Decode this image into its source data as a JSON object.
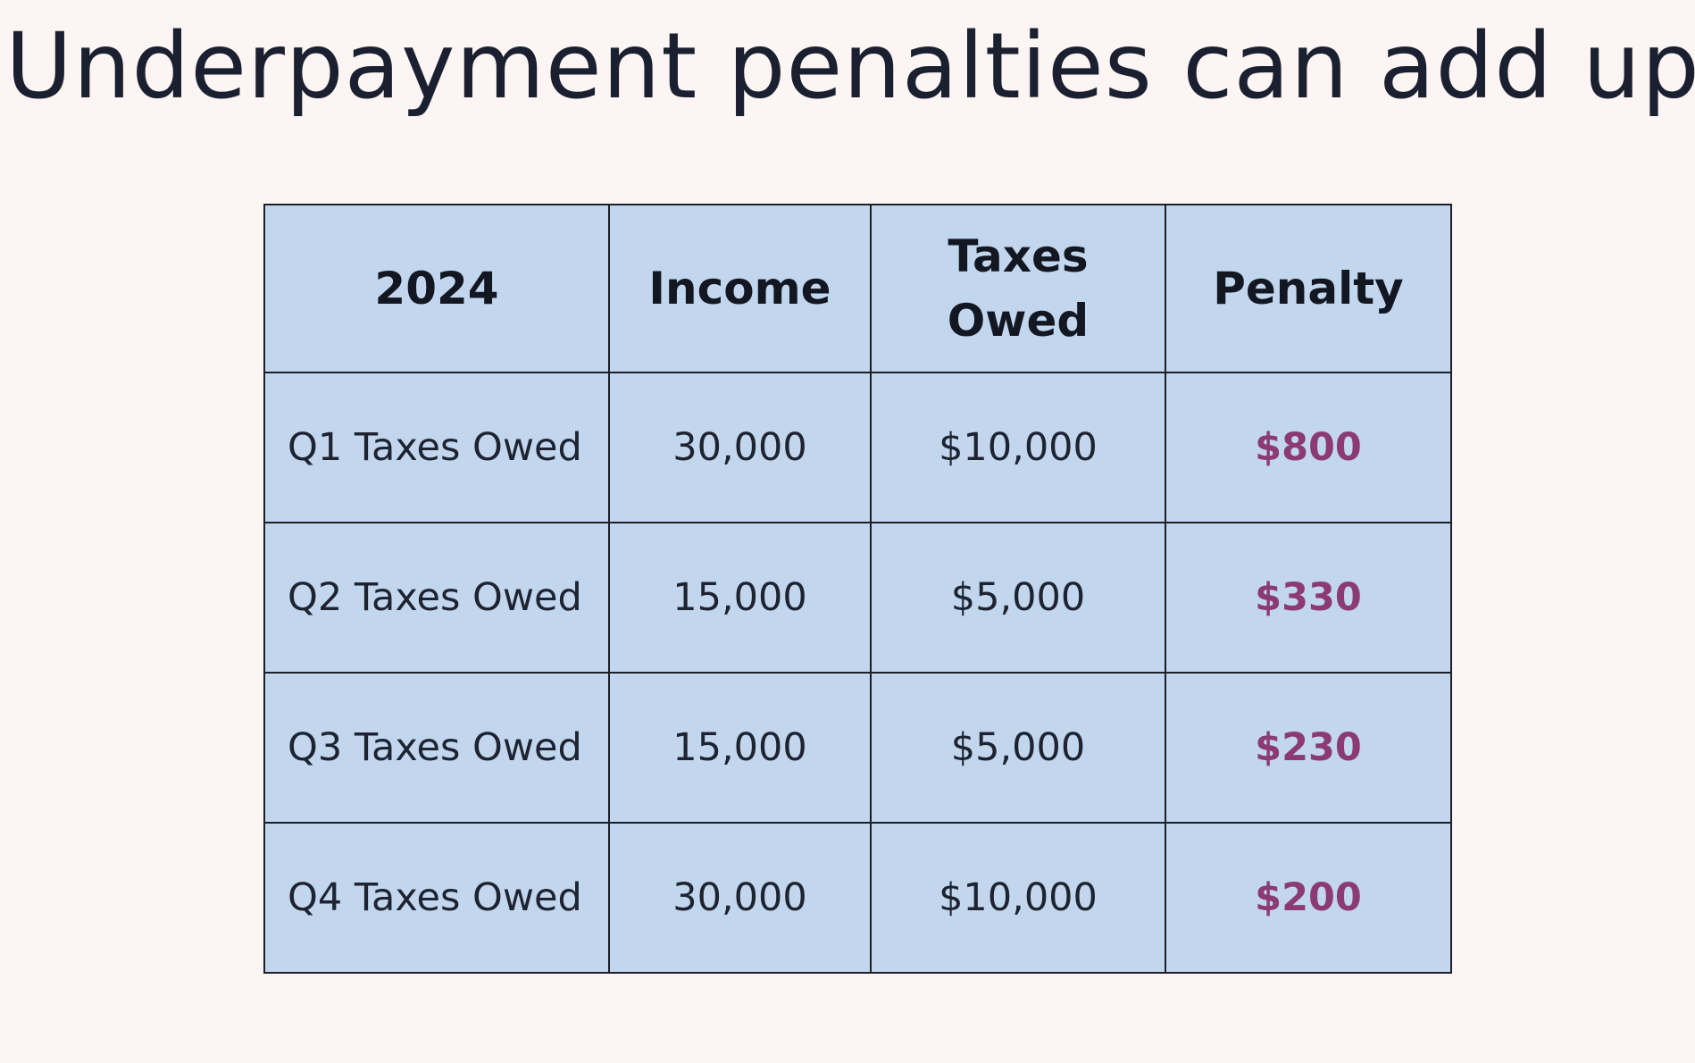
{
  "slide": {
    "title": "Underpayment penalties can add up"
  },
  "table": {
    "headers": [
      "2024",
      "Income",
      "Taxes Owed",
      "Penalty"
    ],
    "rows": [
      {
        "label": "Q1 Taxes Owed",
        "income": "30,000",
        "taxes_owed": "$10,000",
        "penalty": "$800"
      },
      {
        "label": "Q2 Taxes Owed",
        "income": "15,000",
        "taxes_owed": "$5,000",
        "penalty": "$330"
      },
      {
        "label": "Q3 Taxes Owed",
        "income": "15,000",
        "taxes_owed": "$5,000",
        "penalty": "$230"
      },
      {
        "label": "Q4 Taxes Owed",
        "income": "30,000",
        "taxes_owed": "$10,000",
        "penalty": "$200"
      }
    ]
  },
  "colors": {
    "background": "#fdf5f4",
    "table_fill": "#c2d7ee",
    "border": "#1c1f26",
    "penalty_text": "#8b3a73",
    "body_text": "#1e2331"
  }
}
